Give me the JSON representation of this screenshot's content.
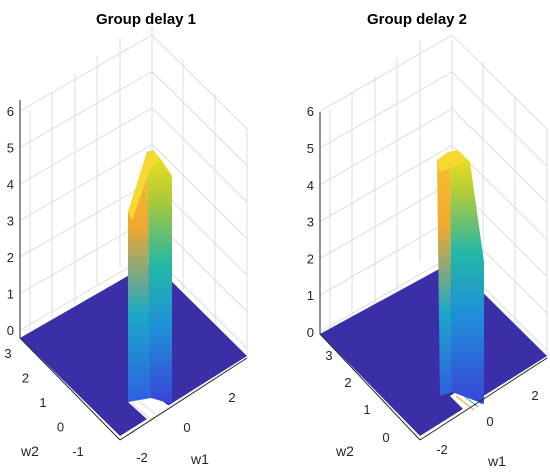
{
  "chart_data": [
    {
      "type": "surface",
      "title": "Group delay 1",
      "xlabel": "w1",
      "ylabel": "w2",
      "zlabel": "",
      "x_ticks": [
        "-2",
        "0",
        "2"
      ],
      "y_ticks": [
        "-1",
        "0",
        "1",
        "2",
        "3"
      ],
      "z_ticks": [
        "0",
        "1",
        "2",
        "3",
        "4",
        "5",
        "6"
      ],
      "xlim": [
        -3.14,
        3.14
      ],
      "ylim": [
        -1,
        3.14
      ],
      "zlim": [
        0,
        6.5
      ],
      "grid": true,
      "colormap": "parula",
      "baseline_z": 0,
      "peak_z": 5.5,
      "peak_region": {
        "w1": [
          -1.2,
          -0.2
        ],
        "w2": [
          -1,
          3.14
        ]
      }
    },
    {
      "type": "surface",
      "title": "Group delay 2",
      "xlabel": "w1",
      "ylabel": "w2",
      "zlabel": "",
      "x_ticks": [
        "-2",
        "0",
        "2"
      ],
      "y_ticks": [
        "0",
        "1",
        "2",
        "3"
      ],
      "z_ticks": [
        "0",
        "1",
        "2",
        "3",
        "4",
        "5",
        "6"
      ],
      "xlim": [
        -3.14,
        3.14
      ],
      "ylim": [
        -1,
        3.14
      ],
      "zlim": [
        0,
        6
      ],
      "grid": true,
      "colormap": "parula",
      "baseline_z": 0,
      "peak_z": 5.0,
      "peak_region": {
        "w1": [
          -1.2,
          -0.2
        ],
        "w2": [
          -1,
          3.14
        ]
      }
    }
  ],
  "colors": {
    "base": "#3b2fa8",
    "low": "#2f6fe0",
    "mid": "#1fb5b0",
    "high": "#f5c22a",
    "peak": "#f2e317",
    "grid": "#dcdcdc"
  }
}
